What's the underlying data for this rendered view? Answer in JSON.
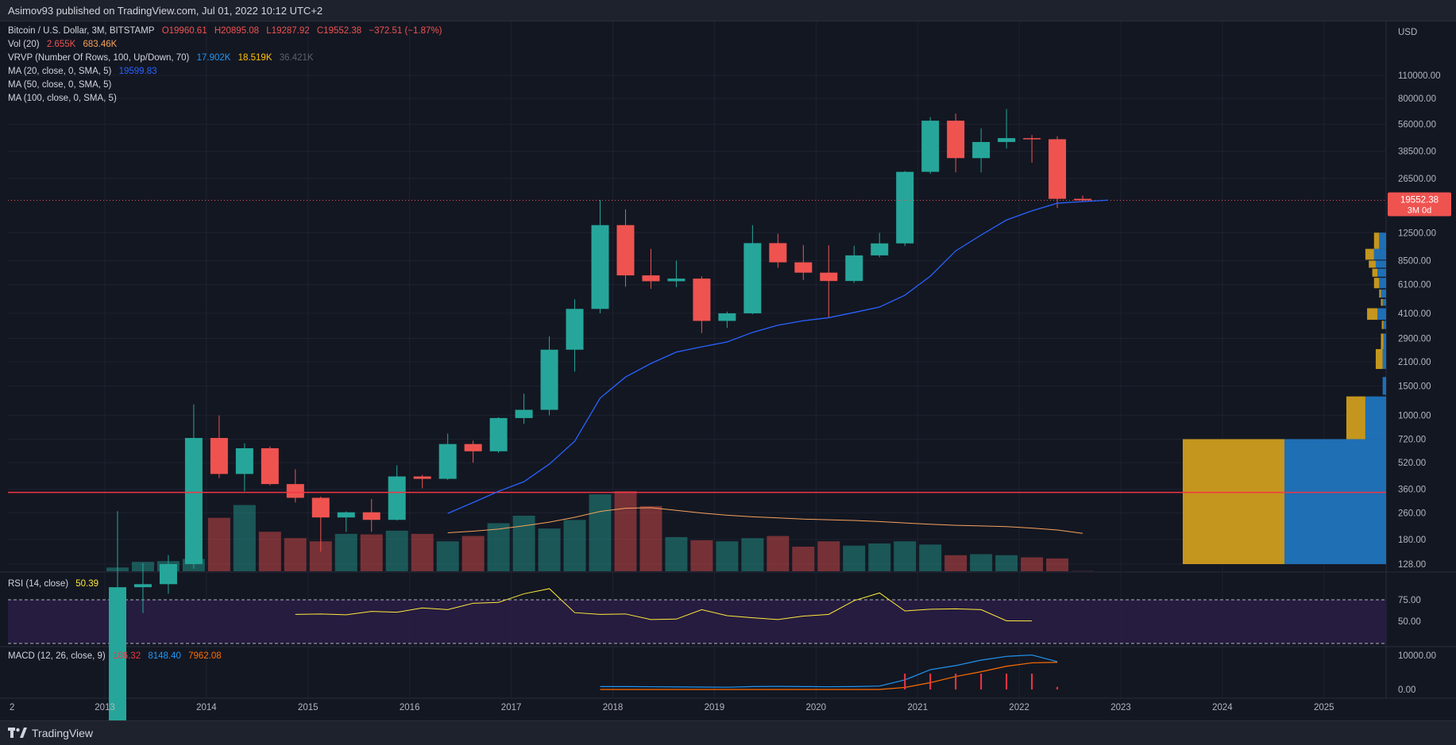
{
  "header": {
    "publisher_line": "Asimov93 published on TradingView.com, Jul 01, 2022 10:12 UTC+2"
  },
  "legend": {
    "symbol": "Bitcoin / U.S. Dollar, 3M, BITSTAMP",
    "ohlc": {
      "open": "O19960.61",
      "high": "H20895.08",
      "low": "L19287.92",
      "close": "C19552.38",
      "change": "−372.51 (−1.87%)"
    },
    "vol": {
      "label": "Vol (20)",
      "v1": "2.655K",
      "v2": "683.46K"
    },
    "vrvp": {
      "label": "VRVP (Number Of Rows, 100, Up/Down, 70)",
      "v1": "17.902K",
      "v2": "18.519K",
      "v3": "36.421K"
    },
    "ma20": {
      "label": "MA (20, close, 0, SMA, 5)",
      "value": "19599.83"
    },
    "ma50": {
      "label": "MA (50, close, 0, SMA, 5)"
    },
    "ma100": {
      "label": "MA (100, close, 0, SMA, 5)"
    }
  },
  "rsi": {
    "label": "RSI (14, close)",
    "value": "50.39",
    "ticks": [
      "75.00",
      "50.00"
    ]
  },
  "macd": {
    "label": "MACD (12, 26, close, 9)",
    "hist": "186.32",
    "macd": "8148.40",
    "signal": "7962.08",
    "ticks": [
      "10000.00",
      "0.00"
    ]
  },
  "price_axis": {
    "currency": "USD",
    "ticks": [
      "110000.00",
      "80000.00",
      "56000.00",
      "38500.00",
      "26500.00",
      "12500.00",
      "8500.00",
      "6100.00",
      "4100.00",
      "2900.00",
      "2100.00",
      "1500.00",
      "1000.00",
      "720.00",
      "520.00",
      "360.00",
      "260.00",
      "180.00",
      "128.00"
    ]
  },
  "last_price": {
    "value": "19552.38",
    "countdown": "3M 0d"
  },
  "time_axis": {
    "ticks": [
      "2",
      "2013",
      "2014",
      "2015",
      "2016",
      "2017",
      "2018",
      "2019",
      "2020",
      "2021",
      "2022",
      "2023",
      "2024",
      "2025"
    ]
  },
  "footer": {
    "brand": "TradingView"
  },
  "colors": {
    "up": "#26a69a",
    "down": "#ef5350",
    "ma20": "#2962ff",
    "ma_vol": "#f7a35c",
    "rsi": "#ffeb3b",
    "rsi_band": "#2a1d45",
    "macd": "#2196f3",
    "signal": "#ff6d00",
    "vp_up": "#c4961e",
    "vp_down": "#1f6fb5",
    "hline": "#f23645"
  },
  "chart_data": {
    "type": "candlestick",
    "scale": "log",
    "timeframe": "3M",
    "x": [
      "2013-Q1",
      "2013-Q2",
      "2013-Q3",
      "2013-Q4",
      "2014-Q1",
      "2014-Q2",
      "2014-Q3",
      "2014-Q4",
      "2015-Q1",
      "2015-Q2",
      "2015-Q3",
      "2015-Q4",
      "2016-Q1",
      "2016-Q2",
      "2016-Q3",
      "2016-Q4",
      "2017-Q1",
      "2017-Q2",
      "2017-Q3",
      "2017-Q4",
      "2018-Q1",
      "2018-Q2",
      "2018-Q3",
      "2018-Q4",
      "2019-Q1",
      "2019-Q2",
      "2019-Q3",
      "2019-Q4",
      "2020-Q1",
      "2020-Q2",
      "2020-Q3",
      "2020-Q4",
      "2021-Q1",
      "2021-Q2",
      "2021-Q3",
      "2021-Q4",
      "2022-Q1",
      "2022-Q2",
      "2022-Q3"
    ],
    "candles": [
      {
        "o": 13.3,
        "h": 266,
        "l": 13,
        "c": 93
      },
      {
        "o": 93,
        "h": 130,
        "l": 65,
        "c": 97
      },
      {
        "o": 97,
        "h": 145,
        "l": 85,
        "c": 128
      },
      {
        "o": 128,
        "h": 1163,
        "l": 120,
        "c": 732
      },
      {
        "o": 732,
        "h": 1000,
        "l": 420,
        "c": 445
      },
      {
        "o": 445,
        "h": 680,
        "l": 350,
        "c": 635
      },
      {
        "o": 635,
        "h": 650,
        "l": 380,
        "c": 387
      },
      {
        "o": 387,
        "h": 475,
        "l": 300,
        "c": 320
      },
      {
        "o": 320,
        "h": 325,
        "l": 152,
        "c": 244
      },
      {
        "o": 244,
        "h": 265,
        "l": 200,
        "c": 262
      },
      {
        "o": 262,
        "h": 315,
        "l": 200,
        "c": 236
      },
      {
        "o": 236,
        "h": 502,
        "l": 234,
        "c": 430
      },
      {
        "o": 430,
        "h": 440,
        "l": 365,
        "c": 416
      },
      {
        "o": 416,
        "h": 778,
        "l": 410,
        "c": 673
      },
      {
        "o": 673,
        "h": 705,
        "l": 520,
        "c": 609
      },
      {
        "o": 609,
        "h": 975,
        "l": 595,
        "c": 964
      },
      {
        "o": 964,
        "h": 1350,
        "l": 890,
        "c": 1080
      },
      {
        "o": 1080,
        "h": 2980,
        "l": 1000,
        "c": 2480
      },
      {
        "o": 2480,
        "h": 4980,
        "l": 1830,
        "c": 4360
      },
      {
        "o": 4360,
        "h": 19666,
        "l": 4100,
        "c": 13880
      },
      {
        "o": 13880,
        "h": 17252,
        "l": 5920,
        "c": 6928
      },
      {
        "o": 6928,
        "h": 9990,
        "l": 5750,
        "c": 6390
      },
      {
        "o": 6390,
        "h": 8500,
        "l": 5880,
        "c": 6626
      },
      {
        "o": 6626,
        "h": 6840,
        "l": 3120,
        "c": 3693
      },
      {
        "o": 3693,
        "h": 4200,
        "l": 3350,
        "c": 4100
      },
      {
        "o": 4100,
        "h": 13880,
        "l": 4050,
        "c": 10820
      },
      {
        "o": 10820,
        "h": 12320,
        "l": 7700,
        "c": 8300
      },
      {
        "o": 8300,
        "h": 10540,
        "l": 6500,
        "c": 7195
      },
      {
        "o": 7195,
        "h": 10500,
        "l": 3850,
        "c": 6410
      },
      {
        "o": 6410,
        "h": 10430,
        "l": 6250,
        "c": 9135
      },
      {
        "o": 9135,
        "h": 12480,
        "l": 8900,
        "c": 10780
      },
      {
        "o": 10780,
        "h": 29300,
        "l": 10400,
        "c": 28990
      },
      {
        "o": 28990,
        "h": 61780,
        "l": 28200,
        "c": 58800
      },
      {
        "o": 58800,
        "h": 64900,
        "l": 28800,
        "c": 35040
      },
      {
        "o": 35040,
        "h": 52900,
        "l": 28800,
        "c": 43790
      },
      {
        "o": 43790,
        "h": 69000,
        "l": 40000,
        "c": 46200
      },
      {
        "o": 46200,
        "h": 48200,
        "l": 32950,
        "c": 45500
      },
      {
        "o": 45500,
        "h": 47400,
        "l": 17600,
        "c": 19960
      },
      {
        "o": 19960,
        "h": 20895,
        "l": 19288,
        "c": 19552
      }
    ],
    "volume_k": [
      35,
      88,
      95,
      115,
      500,
      620,
      370,
      310,
      280,
      350,
      345,
      380,
      350,
      280,
      330,
      450,
      520,
      400,
      480,
      720,
      750,
      610,
      320,
      290,
      280,
      310,
      330,
      230,
      280,
      240,
      260,
      280,
      250,
      150,
      160,
      150,
      130,
      120,
      2.655
    ],
    "ma20": {
      "x_start": "2016-Q2",
      "values": [
        258,
        300,
        350,
        400,
        510,
        700,
        1270,
        1700,
        2050,
        2400,
        2580,
        2760,
        3150,
        3480,
        3700,
        3860,
        4150,
        4470,
        5270,
        6850,
        9720,
        12100,
        14900,
        16900,
        18800,
        19200,
        19600
      ]
    },
    "vol_ma": {
      "x_start": "2016-Q2",
      "values_k": [
        360,
        375,
        395,
        425,
        460,
        505,
        560,
        590,
        595,
        570,
        545,
        525,
        510,
        500,
        488,
        482,
        475,
        465,
        452,
        440,
        430,
        424,
        418,
        404,
        386,
        355
      ]
    },
    "rsi": {
      "x_start": "2014-Q4",
      "values": [
        58,
        58.5,
        57.5,
        61.5,
        60.5,
        65.5,
        63.5,
        71,
        72,
        82,
        88,
        60,
        58,
        58.5,
        52,
        52.5,
        63.5,
        56.5,
        54,
        52,
        56,
        58,
        74,
        83,
        62,
        64,
        64.5,
        63.5,
        50.5,
        50.39
      ]
    },
    "macd": {
      "x_start": "2017-Q4",
      "macd": [
        850,
        850,
        800,
        760,
        700,
        650,
        850,
        900,
        850,
        800,
        850,
        1000,
        2800,
        5800,
        7000,
        8600,
        9700,
        10100,
        8148
      ],
      "signal": [
        0,
        0,
        0,
        0,
        0,
        0,
        0,
        0,
        0,
        0,
        0,
        0,
        600,
        2000,
        3800,
        5200,
        6800,
        7800,
        7962
      ]
    },
    "volume_profile": {
      "bins": [
        {
          "price": "128-720",
          "up": 18.5,
          "down": 17.9
        },
        {
          "price": "720-1300",
          "up": 3.5,
          "down": 3.0
        },
        {
          "price": "1400-1700",
          "up": 0.1,
          "down": 0.45
        },
        {
          "price": "1800-2500",
          "up": 0.6,
          "down": 0.5
        },
        {
          "price": "2500-3100",
          "up": 0.2,
          "down": 0.3
        },
        {
          "price": "3200-3600",
          "up": 0.2,
          "down": 0.3
        },
        {
          "price": "3700-4400",
          "up": 1.2,
          "down": 1.0
        },
        {
          "price": "4600-6000",
          "up": 0.4,
          "down": 0.6
        },
        {
          "price": "6200-7600",
          "up": 0.4,
          "down": 0.5
        },
        {
          "price": "7800-13000",
          "up": 1.0,
          "down": 1.5
        }
      ]
    },
    "horizontal_line_price": 345
  }
}
